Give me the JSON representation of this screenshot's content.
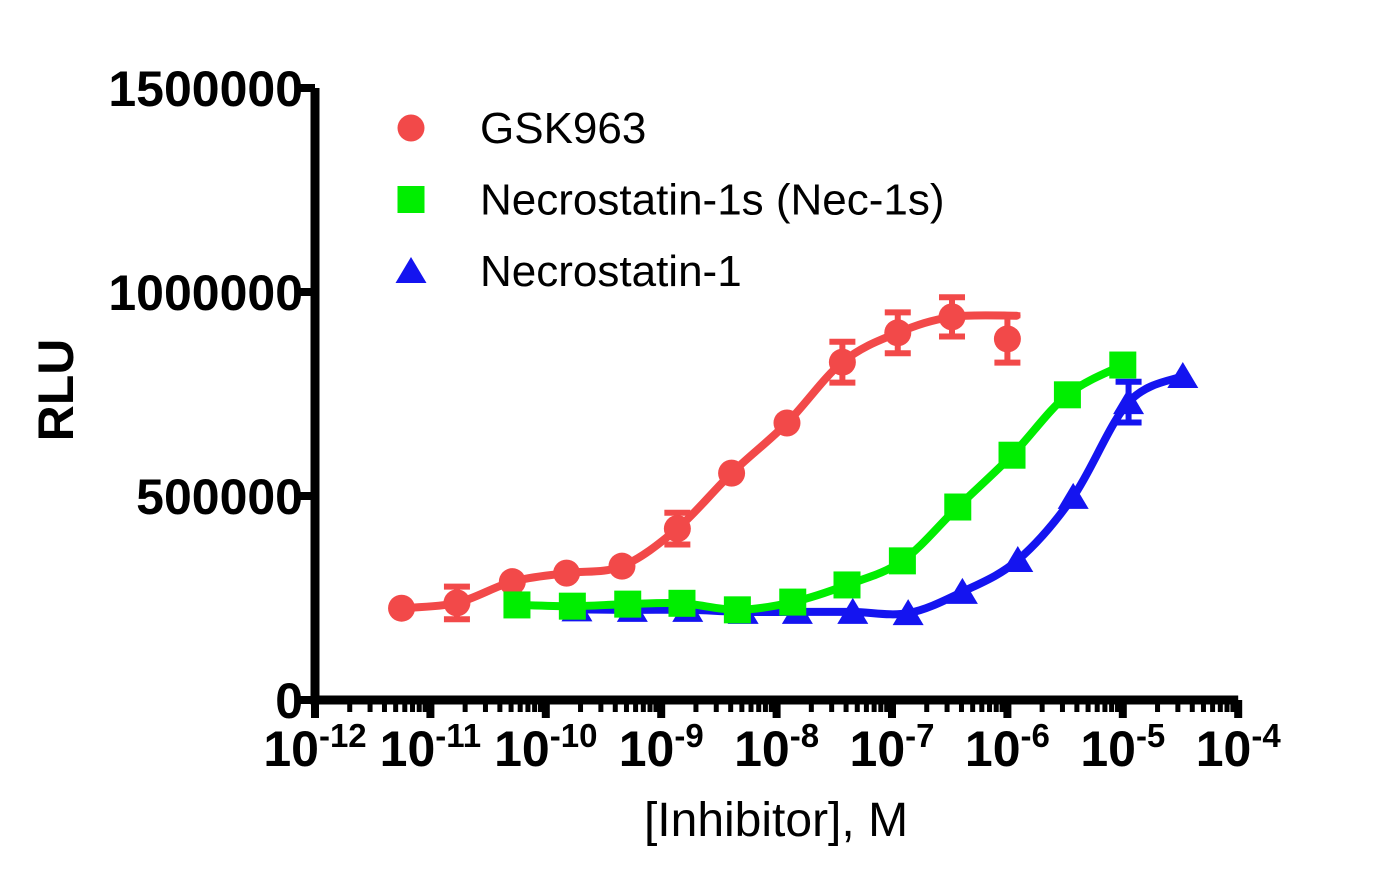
{
  "figure": {
    "background": "#ffffff"
  },
  "chart_data": {
    "type": "scatter",
    "subtype": "dose-response curves (log-x, fitted sigmoids, error bars)",
    "title": "",
    "xlabel": "[Inhibitor], M",
    "ylabel": "RLU",
    "x_scale": "log10",
    "x_tick_base": "10",
    "x_tick_exponents": [
      "-12",
      "-11",
      "-10",
      "-9",
      "-8",
      "-7",
      "-6",
      "-5",
      "-4"
    ],
    "x_range_log10": [
      -12,
      -4
    ],
    "x_minor_ticks": "log-spaced 2-9 within each decade",
    "ylim": [
      0,
      1500000
    ],
    "y_tick_values": [
      0,
      500000,
      1000000,
      1500000
    ],
    "y_tick_labels": [
      "0",
      "500000",
      "1000000",
      "1500000"
    ],
    "grid": false,
    "legend_position": "upper-left-inside",
    "series": [
      {
        "name": "GSK963",
        "color": "#F24949",
        "marker": "circle",
        "points": [
          {
            "x_log10": -11.25,
            "y": 225000
          },
          {
            "x_log10": -10.77,
            "y": 238000,
            "err": 40000
          },
          {
            "x_log10": -10.29,
            "y": 290000
          },
          {
            "x_log10": -9.82,
            "y": 311000
          },
          {
            "x_log10": -9.34,
            "y": 328000
          },
          {
            "x_log10": -8.86,
            "y": 420000,
            "err": 39000
          },
          {
            "x_log10": -8.39,
            "y": 556000
          },
          {
            "x_log10": -7.91,
            "y": 679000
          },
          {
            "x_log10": -7.43,
            "y": 828000,
            "err": 50000
          },
          {
            "x_log10": -6.95,
            "y": 900000,
            "err": 50000
          },
          {
            "x_log10": -6.48,
            "y": 939000,
            "err": 48000
          },
          {
            "x_log10": -6.0,
            "y": 885000,
            "err": 58000
          }
        ],
        "fit": {
          "exclude_last_point": true,
          "extend_to": {
            "x_log10": -5.92,
            "y": 942000
          }
        }
      },
      {
        "name": "Necrostatin-1s (Nec-1s)",
        "color": "#00EE00",
        "marker": "square",
        "points": [
          {
            "x_log10": -10.25,
            "y": 233000
          },
          {
            "x_log10": -9.77,
            "y": 230000
          },
          {
            "x_log10": -9.29,
            "y": 235000
          },
          {
            "x_log10": -8.82,
            "y": 237000
          },
          {
            "x_log10": -8.34,
            "y": 221000
          },
          {
            "x_log10": -7.86,
            "y": 240000
          },
          {
            "x_log10": -7.39,
            "y": 282000
          },
          {
            "x_log10": -6.91,
            "y": 341000
          },
          {
            "x_log10": -6.43,
            "y": 473000
          },
          {
            "x_log10": -5.96,
            "y": 600000
          },
          {
            "x_log10": -5.48,
            "y": 748000
          },
          {
            "x_log10": -5.0,
            "y": 821000
          }
        ],
        "fit": {}
      },
      {
        "name": "Necrostatin-1",
        "color": "#1414F0",
        "marker": "triangle",
        "points": [
          {
            "x_log10": -9.73,
            "y": 222000
          },
          {
            "x_log10": -9.25,
            "y": 221000
          },
          {
            "x_log10": -8.77,
            "y": 221000
          },
          {
            "x_log10": -8.29,
            "y": 216000
          },
          {
            "x_log10": -7.82,
            "y": 216000
          },
          {
            "x_log10": -7.34,
            "y": 216000
          },
          {
            "x_log10": -6.86,
            "y": 213000
          },
          {
            "x_log10": -6.39,
            "y": 265000
          },
          {
            "x_log10": -5.91,
            "y": 343000
          },
          {
            "x_log10": -5.43,
            "y": 498000
          },
          {
            "x_log10": -4.95,
            "y": 730000,
            "err": 50000
          },
          {
            "x_log10": -4.48,
            "y": 794000
          }
        ],
        "fit": {}
      }
    ]
  }
}
